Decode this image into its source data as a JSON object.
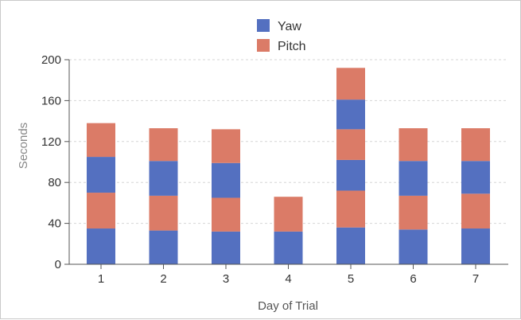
{
  "chart_data": {
    "type": "bar",
    "stacked": true,
    "xlabel": "Day of Trial",
    "ylabel": "Seconds",
    "ylim": [
      0,
      200
    ],
    "yticks": [
      0,
      40,
      80,
      120,
      160,
      200
    ],
    "grid": true,
    "legend_position": "top-center",
    "categories": [
      "1",
      "2",
      "3",
      "4",
      "5",
      "6",
      "7"
    ],
    "stacks": [
      [
        {
          "series": "Yaw",
          "value": 35
        },
        {
          "series": "Pitch",
          "value": 35
        },
        {
          "series": "Yaw",
          "value": 35
        },
        {
          "series": "Pitch",
          "value": 33
        }
      ],
      [
        {
          "series": "Yaw",
          "value": 33
        },
        {
          "series": "Pitch",
          "value": 34
        },
        {
          "series": "Yaw",
          "value": 34
        },
        {
          "series": "Pitch",
          "value": 32
        }
      ],
      [
        {
          "series": "Yaw",
          "value": 32
        },
        {
          "series": "Pitch",
          "value": 33
        },
        {
          "series": "Yaw",
          "value": 34
        },
        {
          "series": "Pitch",
          "value": 33
        }
      ],
      [
        {
          "series": "Yaw",
          "value": 32
        },
        {
          "series": "Pitch",
          "value": 34
        }
      ],
      [
        {
          "series": "Yaw",
          "value": 36
        },
        {
          "series": "Pitch",
          "value": 36
        },
        {
          "series": "Yaw",
          "value": 30
        },
        {
          "series": "Pitch",
          "value": 30
        },
        {
          "series": "Yaw",
          "value": 29
        },
        {
          "series": "Pitch",
          "value": 31
        }
      ],
      [
        {
          "series": "Yaw",
          "value": 34
        },
        {
          "series": "Pitch",
          "value": 33
        },
        {
          "series": "Yaw",
          "value": 34
        },
        {
          "series": "Pitch",
          "value": 32
        }
      ],
      [
        {
          "series": "Yaw",
          "value": 35
        },
        {
          "series": "Pitch",
          "value": 34
        },
        {
          "series": "Yaw",
          "value": 32
        },
        {
          "series": "Pitch",
          "value": 32
        }
      ]
    ],
    "series": [
      {
        "name": "Yaw",
        "color": "#5470c0"
      },
      {
        "name": "Pitch",
        "color": "#db7b67"
      }
    ]
  }
}
